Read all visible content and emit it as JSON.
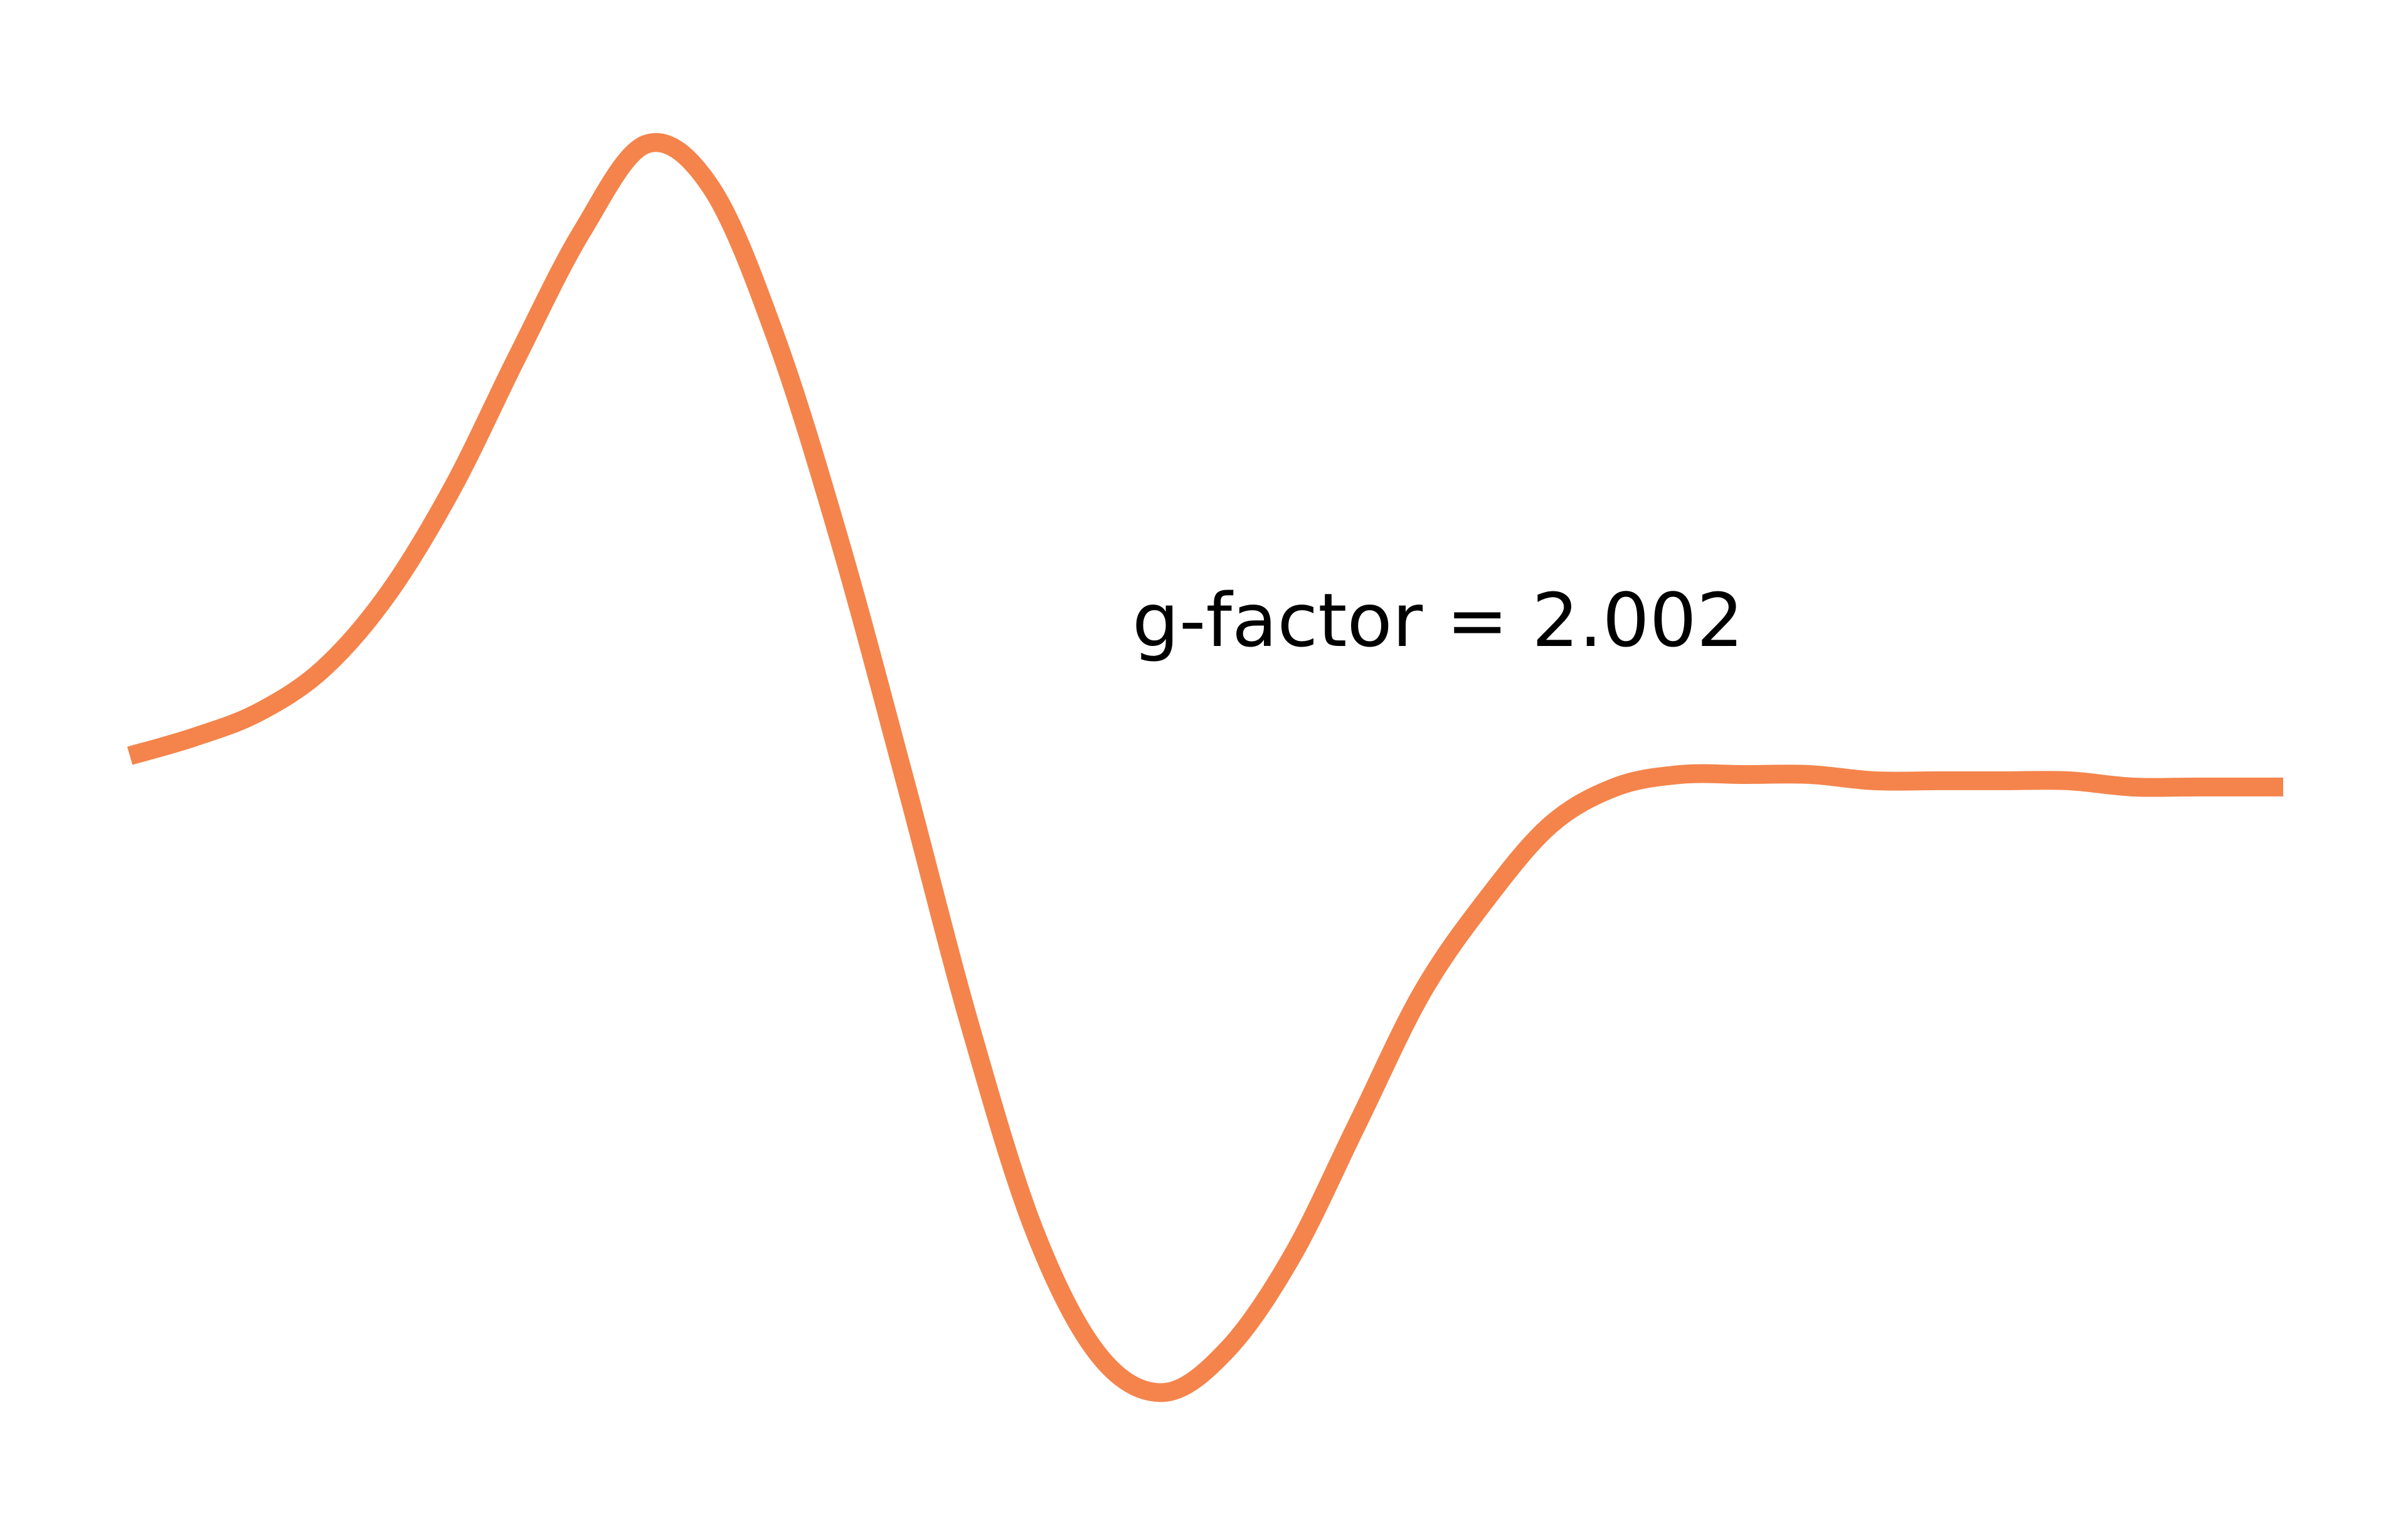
{
  "chart_data": {
    "type": "line",
    "title": "",
    "xlabel": "",
    "ylabel": "",
    "axes_visible": false,
    "grid": false,
    "legend": "none",
    "series": [
      {
        "color": "#F4844C",
        "x": [
          0.0,
          0.03,
          0.06,
          0.09,
          0.12,
          0.15,
          0.18,
          0.21,
          0.24,
          0.27,
          0.3,
          0.33,
          0.36,
          0.39,
          0.42,
          0.45,
          0.48,
          0.51,
          0.54,
          0.57,
          0.6,
          0.63,
          0.66,
          0.69,
          0.72,
          0.75,
          0.78,
          0.81,
          0.84,
          0.87,
          0.9,
          0.93,
          0.96,
          1.0
        ],
        "y": [
          0.02,
          0.05,
          0.09,
          0.16,
          0.28,
          0.45,
          0.66,
          0.86,
          1.0,
          0.93,
          0.69,
          0.36,
          -0.02,
          -0.41,
          -0.74,
          -0.94,
          -1.0,
          -0.93,
          -0.78,
          -0.57,
          -0.36,
          -0.21,
          -0.09,
          -0.03,
          -0.01,
          -0.01,
          -0.01,
          -0.02,
          -0.02,
          -0.02,
          -0.02,
          -0.03,
          -0.03,
          -0.03
        ],
        "ylim": [
          -1.08,
          1.08
        ]
      }
    ],
    "annotations": [
      {
        "text": "g-factor = 2.002"
      }
    ]
  }
}
